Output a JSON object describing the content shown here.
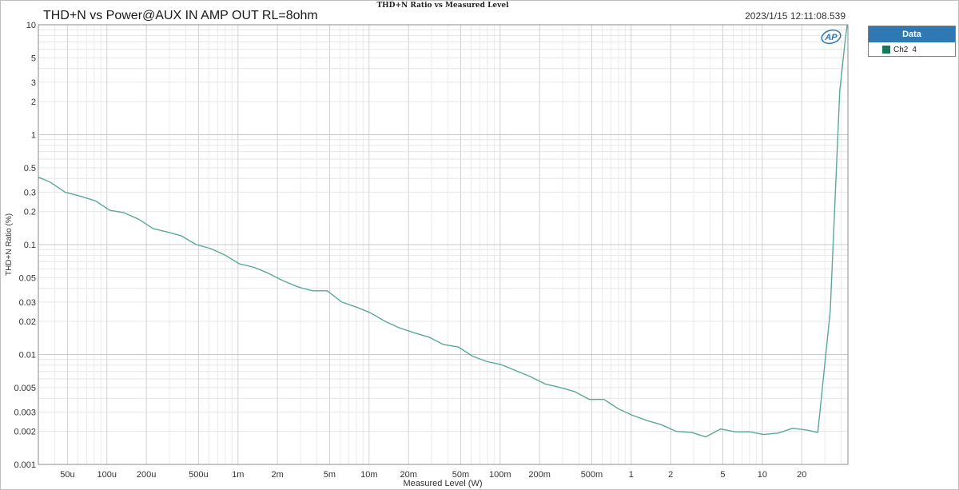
{
  "chart_data": {
    "type": "line",
    "title": "THD+N Ratio vs Measured Level",
    "subtitle": "THD+N vs Power@AUX IN AMP OUT RL=8ohm",
    "timestamp": "2023/1/15 12:11:08.539",
    "logo_text": "AP",
    "xlabel": "Measured Level (W)",
    "ylabel": "THD+N Ratio (%)",
    "x_scale": "log",
    "y_scale": "log",
    "xlim": [
      3e-05,
      45
    ],
    "ylim": [
      0.001,
      10
    ],
    "grid": true,
    "x_ticks": [
      {
        "v": 5e-05,
        "label": "50u"
      },
      {
        "v": 0.0001,
        "label": "100u"
      },
      {
        "v": 0.0002,
        "label": "200u"
      },
      {
        "v": 0.0005,
        "label": "500u"
      },
      {
        "v": 0.001,
        "label": "1m"
      },
      {
        "v": 0.002,
        "label": "2m"
      },
      {
        "v": 0.005,
        "label": "5m"
      },
      {
        "v": 0.01,
        "label": "10m"
      },
      {
        "v": 0.02,
        "label": "20m"
      },
      {
        "v": 0.05,
        "label": "50m"
      },
      {
        "v": 0.1,
        "label": "100m"
      },
      {
        "v": 0.2,
        "label": "200m"
      },
      {
        "v": 0.5,
        "label": "500m"
      },
      {
        "v": 1,
        "label": "1"
      },
      {
        "v": 2,
        "label": "2"
      },
      {
        "v": 5,
        "label": "5"
      },
      {
        "v": 10,
        "label": "10"
      },
      {
        "v": 20,
        "label": "20"
      }
    ],
    "y_ticks": [
      {
        "v": 10,
        "label": "10"
      },
      {
        "v": 5,
        "label": "5"
      },
      {
        "v": 3,
        "label": "3"
      },
      {
        "v": 2,
        "label": "2"
      },
      {
        "v": 1,
        "label": "1"
      },
      {
        "v": 0.5,
        "label": "0.5"
      },
      {
        "v": 0.3,
        "label": "0.3"
      },
      {
        "v": 0.2,
        "label": "0.2"
      },
      {
        "v": 0.1,
        "label": "0.1"
      },
      {
        "v": 0.05,
        "label": "0.05"
      },
      {
        "v": 0.03,
        "label": "0.03"
      },
      {
        "v": 0.02,
        "label": "0.02"
      },
      {
        "v": 0.01,
        "label": "0.01"
      },
      {
        "v": 0.005,
        "label": "0.005"
      },
      {
        "v": 0.003,
        "label": "0.003"
      },
      {
        "v": 0.002,
        "label": "0.002"
      },
      {
        "v": 0.001,
        "label": "0.001"
      }
    ],
    "legend": {
      "title": "Data",
      "position": "right"
    },
    "series": [
      {
        "name": "Ch2",
        "index_label": "4",
        "color": "#5aa89a",
        "swatch_color": "#147a5a",
        "points": [
          [
            3e-05,
            0.41
          ],
          [
            3.7e-05,
            0.37
          ],
          [
            4.8e-05,
            0.3
          ],
          [
            6.3e-05,
            0.275
          ],
          [
            8.2e-05,
            0.25
          ],
          [
            0.000105,
            0.205
          ],
          [
            0.000135,
            0.195
          ],
          [
            0.000175,
            0.17
          ],
          [
            0.000225,
            0.14
          ],
          [
            0.00029,
            0.13
          ],
          [
            0.00037,
            0.12
          ],
          [
            0.00048,
            0.1
          ],
          [
            0.00062,
            0.092
          ],
          [
            0.0008,
            0.08
          ],
          [
            0.00102,
            0.067
          ],
          [
            0.00133,
            0.062
          ],
          [
            0.0017,
            0.055
          ],
          [
            0.0022,
            0.047
          ],
          [
            0.0029,
            0.041
          ],
          [
            0.0037,
            0.038
          ],
          [
            0.0048,
            0.038
          ],
          [
            0.0062,
            0.03
          ],
          [
            0.008,
            0.027
          ],
          [
            0.0102,
            0.024
          ],
          [
            0.0133,
            0.02
          ],
          [
            0.017,
            0.0175
          ],
          [
            0.022,
            0.0158
          ],
          [
            0.029,
            0.0143
          ],
          [
            0.037,
            0.0123
          ],
          [
            0.048,
            0.0117
          ],
          [
            0.062,
            0.0096
          ],
          [
            0.08,
            0.0086
          ],
          [
            0.102,
            0.0081
          ],
          [
            0.133,
            0.0071
          ],
          [
            0.17,
            0.0063
          ],
          [
            0.22,
            0.0054
          ],
          [
            0.29,
            0.005
          ],
          [
            0.37,
            0.0046
          ],
          [
            0.48,
            0.0039
          ],
          [
            0.62,
            0.0039
          ],
          [
            0.8,
            0.0032
          ],
          [
            1.02,
            0.0028
          ],
          [
            1.33,
            0.0025
          ],
          [
            1.7,
            0.0023
          ],
          [
            2.2,
            0.002
          ],
          [
            2.9,
            0.00195
          ],
          [
            3.7,
            0.00178
          ],
          [
            4.8,
            0.0021
          ],
          [
            6.2,
            0.00198
          ],
          [
            8.0,
            0.00198
          ],
          [
            10.2,
            0.00187
          ],
          [
            13.3,
            0.00193
          ],
          [
            17.0,
            0.00213
          ],
          [
            22.0,
            0.00205
          ],
          [
            26.5,
            0.00195
          ],
          [
            33.0,
            0.025
          ],
          [
            39.0,
            2.5
          ],
          [
            43.0,
            7.5
          ],
          [
            44.5,
            10
          ]
        ]
      }
    ]
  }
}
